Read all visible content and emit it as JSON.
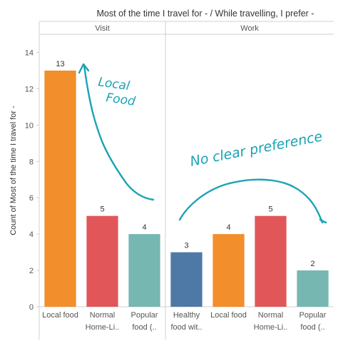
{
  "header": {
    "title": "Most of the time I travel for -  /  While travelling, I prefer -"
  },
  "chart_data": {
    "type": "bar",
    "title": "Most of the time I travel for -  /  While travelling, I prefer -",
    "ylabel": "Count of Most of the time I travel for -",
    "ylim": [
      0,
      15
    ],
    "yticks": [
      0,
      2,
      4,
      6,
      8,
      10,
      12,
      14
    ],
    "grid": false,
    "panels": [
      {
        "name": "Visit",
        "bars": [
          {
            "category": "Local food",
            "value": 13,
            "color": "#f28e2b"
          },
          {
            "category": [
              "Normal",
              "Home-Li.."
            ],
            "value": 5,
            "color": "#e15759"
          },
          {
            "category": [
              "Popular",
              "food (.."
            ],
            "value": 4,
            "color": "#76b7b2"
          }
        ]
      },
      {
        "name": "Work",
        "bars": [
          {
            "category": [
              "Healthy",
              "food wit.."
            ],
            "value": 3,
            "color": "#4e79a7"
          },
          {
            "category": "Local food",
            "value": 4,
            "color": "#f28e2b"
          },
          {
            "category": [
              "Normal",
              "Home-Li.."
            ],
            "value": 5,
            "color": "#e15759"
          },
          {
            "category": [
              "Popular",
              "food (.."
            ],
            "value": 2,
            "color": "#76b7b2"
          }
        ]
      }
    ],
    "annotations": [
      {
        "text": [
          "Local",
          "Food"
        ],
        "panel": "Visit",
        "style": "handwritten",
        "color": "#1aa3b5"
      },
      {
        "text": "No clear preference",
        "panel": "Work",
        "style": "handwritten",
        "color": "#1aa3b5"
      }
    ]
  }
}
